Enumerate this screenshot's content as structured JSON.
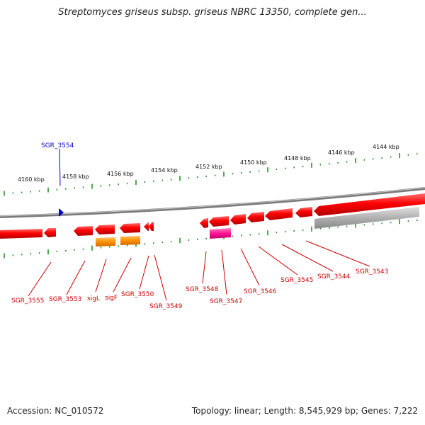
{
  "title": "Streptomyces griseus subsp. griseus NBRC 13350, complete gen...",
  "footer": {
    "accession": "Accession: NC_010572",
    "summary": "Topology: linear; Length: 8,545,929 bp; Genes: 7,222"
  },
  "colors": {
    "gene": "#ff0000",
    "highlight": "#0000cc",
    "rna": "#ff8c00",
    "pseudo": "#ff1493",
    "grey": "#a8a8a8",
    "tick": "#1a8a1a",
    "backbone": "#888888"
  },
  "scale_labels": [
    "4160 kbp",
    "4158 kbp",
    "4156 kbp",
    "4154 kbp",
    "4152 kbp",
    "4150 kbp",
    "4148 kbp",
    "4146 kbp",
    "4144 kbp"
  ],
  "highlight_gene": "SGR_3554",
  "gene_labels": [
    "SGR_3555",
    "SGR_3553",
    "sigL",
    "sigF",
    "SGR_3550",
    "SGR_3549",
    "SGR_3548",
    "SGR_3547",
    "SGR_3546",
    "SGR_3545",
    "SGR_3544",
    "SGR_3543"
  ]
}
